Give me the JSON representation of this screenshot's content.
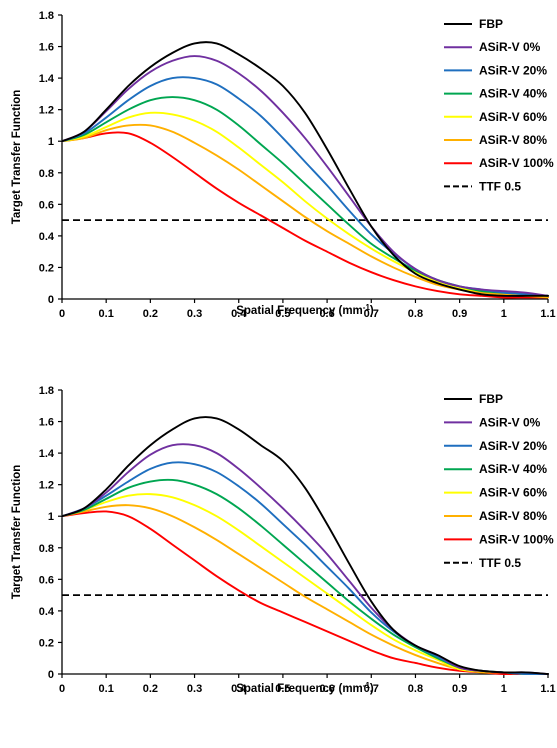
{
  "chart_data": [
    {
      "type": "line",
      "title": "",
      "xlabel": "Spatial Frequency (mm",
      "xlabel_sup": "-1",
      "xlabel_end": ")",
      "ylabel": "Target Transfer Function",
      "xlim": [
        0,
        1.1
      ],
      "ylim": [
        0,
        1.8
      ],
      "xticks": [
        "0",
        "0.1",
        "0.2",
        "0.3",
        "0.4",
        "0.5",
        "0.6",
        "0.7",
        "0.8",
        "0.9",
        "1",
        "1.1"
      ],
      "yticks": [
        "0",
        "0.2",
        "0.4",
        "0.6",
        "0.8",
        "1",
        "1.2",
        "1.4",
        "1.6",
        "1.8"
      ],
      "grid": false,
      "legend_position": "top-right",
      "x": [
        0,
        0.05,
        0.1,
        0.15,
        0.2,
        0.25,
        0.3,
        0.35,
        0.4,
        0.45,
        0.5,
        0.55,
        0.6,
        0.65,
        0.7,
        0.75,
        0.8,
        0.85,
        0.9,
        0.95,
        1.0,
        1.05,
        1.1
      ],
      "series": [
        {
          "name": "FBP",
          "color": "#000000",
          "dash": "solid",
          "values": [
            1.0,
            1.06,
            1.2,
            1.35,
            1.47,
            1.56,
            1.62,
            1.62,
            1.55,
            1.46,
            1.35,
            1.18,
            0.95,
            0.7,
            0.46,
            0.28,
            0.16,
            0.1,
            0.06,
            0.03,
            0.02,
            0.02,
            0.02
          ]
        },
        {
          "name": "ASiR-V 0%",
          "color": "#7030a0",
          "dash": "solid",
          "values": [
            1.0,
            1.06,
            1.19,
            1.33,
            1.44,
            1.51,
            1.54,
            1.51,
            1.43,
            1.32,
            1.18,
            1.02,
            0.84,
            0.65,
            0.46,
            0.3,
            0.19,
            0.12,
            0.08,
            0.06,
            0.05,
            0.04,
            0.02
          ]
        },
        {
          "name": "ASiR-V 20%",
          "color": "#1f6fbf",
          "dash": "solid",
          "values": [
            1.0,
            1.05,
            1.15,
            1.26,
            1.35,
            1.4,
            1.4,
            1.36,
            1.27,
            1.16,
            1.02,
            0.87,
            0.72,
            0.56,
            0.41,
            0.29,
            0.19,
            0.12,
            0.08,
            0.06,
            0.04,
            0.03,
            0.02
          ]
        },
        {
          "name": "ASiR-V 40%",
          "color": "#00a651",
          "dash": "solid",
          "values": [
            1.0,
            1.04,
            1.12,
            1.2,
            1.26,
            1.28,
            1.26,
            1.2,
            1.1,
            0.98,
            0.86,
            0.73,
            0.6,
            0.47,
            0.35,
            0.26,
            0.18,
            0.12,
            0.08,
            0.05,
            0.04,
            0.03,
            0.02
          ]
        },
        {
          "name": "ASiR-V 60%",
          "color": "#ffff00",
          "dash": "solid",
          "values": [
            1.0,
            1.03,
            1.09,
            1.15,
            1.18,
            1.17,
            1.13,
            1.06,
            0.96,
            0.85,
            0.74,
            0.62,
            0.51,
            0.41,
            0.32,
            0.24,
            0.17,
            0.11,
            0.07,
            0.05,
            0.04,
            0.03,
            0.02
          ]
        },
        {
          "name": "ASiR-V 80%",
          "color": "#ffb000",
          "dash": "solid",
          "values": [
            1.0,
            1.02,
            1.07,
            1.1,
            1.1,
            1.06,
            0.99,
            0.91,
            0.82,
            0.72,
            0.62,
            0.52,
            0.43,
            0.35,
            0.27,
            0.2,
            0.14,
            0.09,
            0.06,
            0.04,
            0.03,
            0.02,
            0.01
          ]
        },
        {
          "name": "ASiR-V 100%",
          "color": "#ff0000",
          "dash": "solid",
          "values": [
            1.0,
            1.02,
            1.05,
            1.05,
            0.99,
            0.9,
            0.8,
            0.7,
            0.61,
            0.53,
            0.45,
            0.37,
            0.3,
            0.23,
            0.17,
            0.12,
            0.08,
            0.05,
            0.03,
            0.02,
            0.01,
            0.01,
            0.01
          ]
        },
        {
          "name": "TTF 0.5",
          "color": "#000000",
          "dash": "dashed",
          "values": [
            0.5,
            0.5,
            0.5,
            0.5,
            0.5,
            0.5,
            0.5,
            0.5,
            0.5,
            0.5,
            0.5,
            0.5,
            0.5,
            0.5,
            0.5,
            0.5,
            0.5,
            0.5,
            0.5,
            0.5,
            0.5,
            0.5,
            0.5
          ]
        }
      ]
    },
    {
      "type": "line",
      "title": "",
      "xlabel": "Spatial Frequency (mm",
      "xlabel_sup": "-1",
      "xlabel_end": ")",
      "ylabel": "Target Transfer Function",
      "xlim": [
        0,
        1.1
      ],
      "ylim": [
        0,
        1.8
      ],
      "xticks": [
        "0",
        "0.1",
        "0.2",
        "0.3",
        "0.4",
        "0.5",
        "0.6",
        "0.7",
        "0.8",
        "0.9",
        "1",
        "1.1"
      ],
      "yticks": [
        "0",
        "0.2",
        "0.4",
        "0.6",
        "0.8",
        "1",
        "1.2",
        "1.4",
        "1.6",
        "1.8"
      ],
      "grid": false,
      "legend_position": "top-right",
      "x": [
        0,
        0.05,
        0.1,
        0.15,
        0.2,
        0.25,
        0.3,
        0.35,
        0.4,
        0.45,
        0.5,
        0.55,
        0.6,
        0.65,
        0.7,
        0.75,
        0.8,
        0.85,
        0.9,
        0.95,
        1.0,
        1.05,
        1.1
      ],
      "series": [
        {
          "name": "FBP",
          "color": "#000000",
          "dash": "solid",
          "values": [
            1.0,
            1.05,
            1.17,
            1.32,
            1.45,
            1.55,
            1.62,
            1.62,
            1.55,
            1.45,
            1.35,
            1.18,
            0.95,
            0.7,
            0.46,
            0.28,
            0.18,
            0.12,
            0.05,
            0.02,
            0.01,
            0.01,
            0.0
          ]
        },
        {
          "name": "ASiR-V 0%",
          "color": "#7030a0",
          "dash": "solid",
          "values": [
            1.0,
            1.05,
            1.15,
            1.28,
            1.39,
            1.45,
            1.45,
            1.4,
            1.3,
            1.18,
            1.05,
            0.91,
            0.76,
            0.59,
            0.42,
            0.28,
            0.18,
            0.12,
            0.04,
            0.02,
            0.01,
            0.01,
            0.0
          ]
        },
        {
          "name": "ASiR-V 20%",
          "color": "#1f6fbf",
          "dash": "solid",
          "values": [
            1.0,
            1.05,
            1.13,
            1.22,
            1.3,
            1.34,
            1.33,
            1.28,
            1.19,
            1.08,
            0.95,
            0.82,
            0.68,
            0.54,
            0.39,
            0.27,
            0.18,
            0.11,
            0.04,
            0.02,
            0.01,
            0.0,
            0.0
          ]
        },
        {
          "name": "ASiR-V 40%",
          "color": "#00a651",
          "dash": "solid",
          "values": [
            1.0,
            1.04,
            1.11,
            1.18,
            1.22,
            1.23,
            1.2,
            1.14,
            1.05,
            0.94,
            0.82,
            0.7,
            0.58,
            0.46,
            0.35,
            0.25,
            0.17,
            0.1,
            0.04,
            0.02,
            0.01,
            0.0,
            0.0
          ]
        },
        {
          "name": "ASiR-V 60%",
          "color": "#ffff00",
          "dash": "solid",
          "values": [
            1.0,
            1.04,
            1.09,
            1.13,
            1.14,
            1.12,
            1.07,
            1.0,
            0.91,
            0.81,
            0.71,
            0.61,
            0.51,
            0.41,
            0.31,
            0.22,
            0.15,
            0.09,
            0.03,
            0.02,
            0.01,
            0.0,
            0.0
          ]
        },
        {
          "name": "ASiR-V 80%",
          "color": "#ffb000",
          "dash": "solid",
          "values": [
            1.0,
            1.03,
            1.06,
            1.07,
            1.05,
            1.0,
            0.93,
            0.85,
            0.76,
            0.67,
            0.58,
            0.49,
            0.41,
            0.33,
            0.25,
            0.18,
            0.12,
            0.07,
            0.03,
            0.01,
            0.01,
            0.0,
            0.0
          ]
        },
        {
          "name": "ASiR-V 100%",
          "color": "#ff0000",
          "dash": "solid",
          "values": [
            1.0,
            1.02,
            1.03,
            1.0,
            0.92,
            0.82,
            0.72,
            0.62,
            0.53,
            0.45,
            0.39,
            0.33,
            0.27,
            0.21,
            0.15,
            0.1,
            0.07,
            0.04,
            0.02,
            0.01,
            0.0,
            0.0,
            0.0
          ]
        },
        {
          "name": "TTF 0.5",
          "color": "#000000",
          "dash": "dashed",
          "values": [
            0.5,
            0.5,
            0.5,
            0.5,
            0.5,
            0.5,
            0.5,
            0.5,
            0.5,
            0.5,
            0.5,
            0.5,
            0.5,
            0.5,
            0.5,
            0.5,
            0.5,
            0.5,
            0.5,
            0.5,
            0.5,
            0.5,
            0.5
          ]
        }
      ]
    }
  ]
}
